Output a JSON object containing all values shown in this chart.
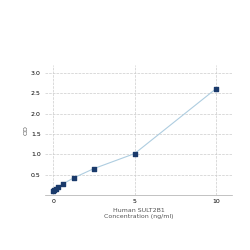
{
  "x": [
    0.0,
    0.078,
    0.156,
    0.313,
    0.625,
    1.25,
    2.5,
    5.0,
    10.0
  ],
  "y": [
    0.1,
    0.13,
    0.16,
    0.2,
    0.28,
    0.42,
    0.65,
    1.02,
    2.62
  ],
  "line_color": "#aecde0",
  "marker_color": "#1a3a6b",
  "marker_size": 3.5,
  "xlabel_line1": "Human SULT2B1",
  "xlabel_line2": "Concentration (ng/ml)",
  "ylabel": "OD",
  "xlim": [
    -0.5,
    11.0
  ],
  "ylim": [
    0.0,
    3.2
  ],
  "yticks": [
    0.5,
    1.0,
    1.5,
    2.0,
    2.5,
    3.0
  ],
  "xticks": [
    0,
    5,
    10
  ],
  "grid_color": "#cccccc",
  "grid_style": "--",
  "bg_color": "#ffffff",
  "label_fontsize": 4.5,
  "tick_fontsize": 4.5
}
